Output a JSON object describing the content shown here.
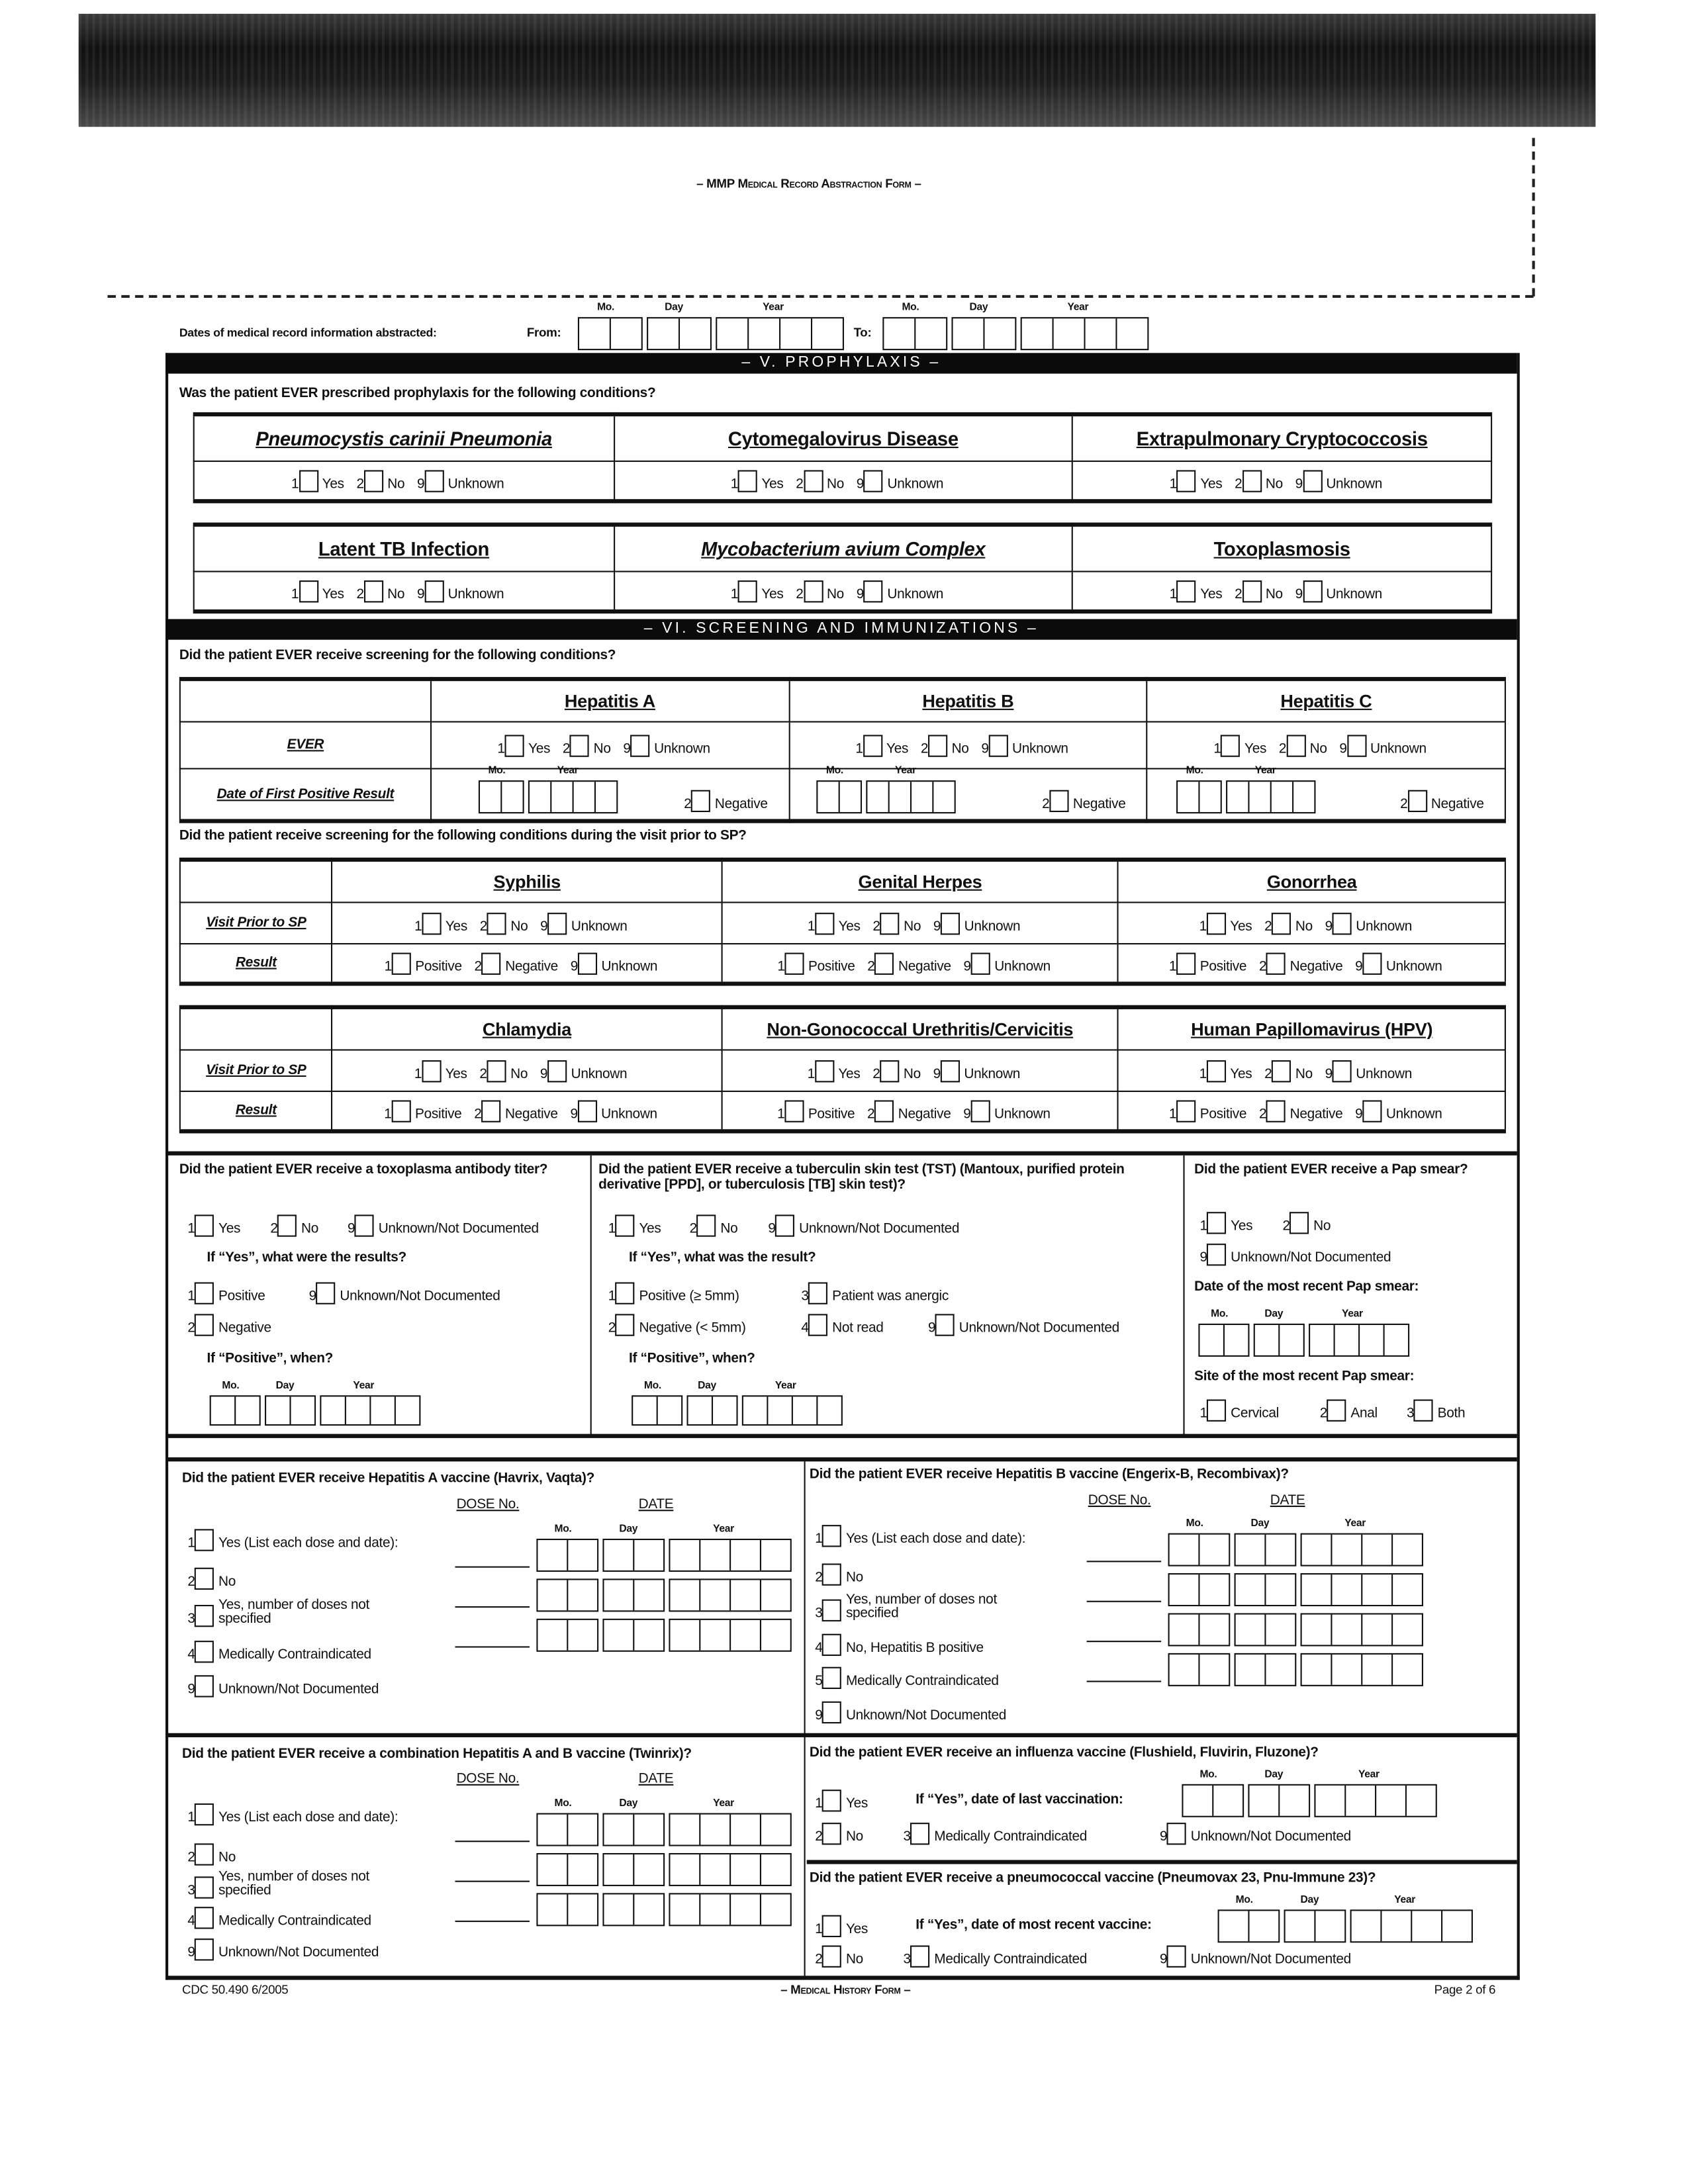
{
  "header": {
    "form_title": "– MMP Medical Record Abstraction Form –"
  },
  "date_labels": {
    "mo": "Mo.",
    "day": "Day",
    "year": "Year"
  },
  "dates_abstracted": {
    "label": "Dates of medical record information abstracted:",
    "from": "From:",
    "to": "To:"
  },
  "yn_options": [
    {
      "code": "1",
      "label": "Yes"
    },
    {
      "code": "2",
      "label": "No"
    },
    {
      "code": "9",
      "label": "Unknown"
    }
  ],
  "result_options": [
    {
      "code": "1",
      "label": "Positive"
    },
    {
      "code": "2",
      "label": "Negative"
    },
    {
      "code": "9",
      "label": "Unknown"
    }
  ],
  "prophylaxis": {
    "title": "– V. PROPHYLAXIS –",
    "question": "Was the patient EVER prescribed prophylaxis for the following conditions?",
    "conditions": [
      "Pneumocystis carinii Pneumonia",
      "Cytomegalovirus Disease",
      "Extrapulmonary Cryptococcosis",
      "Latent TB Infection",
      "Mycobacterium avium Complex",
      "Toxoplasmosis"
    ]
  },
  "screening": {
    "title": "– VI. SCREENING AND IMMUNIZATIONS –",
    "question_ever": "Did the patient EVER receive screening for the following conditions?",
    "hepatitis_headers": [
      "Hepatitis A",
      "Hepatitis B",
      "Hepatitis C"
    ],
    "row_ever": "EVER",
    "row_first_positive": "Date of First Positive Result",
    "negative_option": {
      "code": "2",
      "label": "Negative"
    },
    "question_visit": "Did the patient receive screening for the following conditions during the visit prior to SP?",
    "std_tables": [
      {
        "headers": [
          "Syphilis",
          "Genital Herpes",
          "Gonorrhea"
        ]
      },
      {
        "headers": [
          "Chlamydia",
          "Non-Gonococcal Urethritis/Cervicitis",
          "Human Papillomavirus (HPV)"
        ]
      }
    ],
    "row_visit": "Visit Prior to SP",
    "row_result": "Result"
  },
  "toxo": {
    "question": "Did the patient EVER receive a toxoplasma antibody titer?",
    "options": [
      {
        "code": "1",
        "label": "Yes"
      },
      {
        "code": "2",
        "label": "No"
      },
      {
        "code": "9",
        "label": "Unknown/Not Documented"
      }
    ],
    "if_yes": "If “Yes”, what were the results?",
    "results": [
      {
        "code": "1",
        "label": "Positive"
      },
      {
        "code": "9",
        "label": "Unknown/Not Documented"
      },
      {
        "code": "2",
        "label": "Negative"
      }
    ],
    "if_positive": "If “Positive”, when?"
  },
  "tst": {
    "question": "Did the patient EVER receive a tuberculin skin test (TST) (Mantoux, purified protein derivative [PPD], or tuberculosis [TB] skin test)?",
    "options": [
      {
        "code": "1",
        "label": "Yes"
      },
      {
        "code": "2",
        "label": "No"
      },
      {
        "code": "9",
        "label": "Unknown/Not Documented"
      }
    ],
    "if_yes": "If “Yes”, what was the result?",
    "results": [
      {
        "code": "1",
        "label": "Positive  (≥ 5mm)"
      },
      {
        "code": "3",
        "label": "Patient was anergic"
      },
      {
        "code": "2",
        "label": "Negative (< 5mm)"
      },
      {
        "code": "4",
        "label": "Not read"
      },
      {
        "code": "9",
        "label": "Unknown/Not Documented"
      }
    ],
    "if_positive": "If “Positive”, when?"
  },
  "pap": {
    "question": "Did the patient EVER receive a Pap smear?",
    "options": [
      {
        "code": "1",
        "label": "Yes"
      },
      {
        "code": "2",
        "label": "No"
      },
      {
        "code": "9",
        "label": "Unknown/Not Documented"
      }
    ],
    "date_label": "Date of the most recent Pap smear:",
    "site_label": "Site of the most recent Pap smear:",
    "sites": [
      {
        "code": "1",
        "label": "Cervical"
      },
      {
        "code": "2",
        "label": "Anal"
      },
      {
        "code": "3",
        "label": "Both"
      }
    ]
  },
  "dose_header": "DOSE No.",
  "date_header": "DATE",
  "hepa_vaccine": {
    "question": "Did the patient EVER receive Hepatitis A vaccine (Havrix, Vaqta)?",
    "options": [
      {
        "code": "1",
        "label": "Yes (List each dose and date):"
      },
      {
        "code": "2",
        "label": "No"
      },
      {
        "code": "3",
        "label": "Yes, number of doses not specified"
      },
      {
        "code": "4",
        "label": "Medically Contraindicated"
      },
      {
        "code": "9",
        "label": "Unknown/Not Documented"
      }
    ]
  },
  "hepb_vaccine": {
    "question": "Did the patient EVER receive Hepatitis B vaccine (Engerix-B, Recombivax)?",
    "options": [
      {
        "code": "1",
        "label": "Yes (List each dose and date):"
      },
      {
        "code": "2",
        "label": "No"
      },
      {
        "code": "3",
        "label": "Yes, number of doses not specified"
      },
      {
        "code": "4",
        "label": "No, Hepatitis B positive"
      },
      {
        "code": "5",
        "label": "Medically Contraindicated"
      },
      {
        "code": "9",
        "label": "Unknown/Not Documented"
      }
    ]
  },
  "twinrix": {
    "question": "Did the patient EVER receive a combination Hepatitis A and B vaccine (Twinrix)?",
    "options": [
      {
        "code": "1",
        "label": "Yes (List each dose and date):"
      },
      {
        "code": "2",
        "label": "No"
      },
      {
        "code": "3",
        "label": "Yes, number of doses not specified"
      },
      {
        "code": "4",
        "label": "Medically Contraindicated"
      },
      {
        "code": "9",
        "label": "Unknown/Not Documented"
      }
    ]
  },
  "influenza": {
    "question": "Did the patient EVER receive an influenza vaccine (Flushield, Fluvirin, Fluzone)?",
    "if_yes": "If “Yes”, date of last vaccination:",
    "options": [
      {
        "code": "1",
        "label": "Yes"
      },
      {
        "code": "2",
        "label": "No"
      },
      {
        "code": "3",
        "label": "Medically Contraindicated"
      },
      {
        "code": "9",
        "label": "Unknown/Not Documented"
      }
    ]
  },
  "pneumococcal": {
    "question": "Did the patient EVER receive a pneumococcal vaccine (Pneumovax 23, Pnu-Immune 23)?",
    "if_yes": "If “Yes”, date of most recent vaccine:",
    "options": [
      {
        "code": "1",
        "label": "Yes"
      },
      {
        "code": "2",
        "label": "No"
      },
      {
        "code": "3",
        "label": "Medically Contraindicated"
      },
      {
        "code": "9",
        "label": "Unknown/Not Documented"
      }
    ]
  },
  "footer": {
    "form_number": "CDC 50.490  6/2005",
    "center": "– Medical History Form –",
    "page": "Page 2 of 6"
  }
}
